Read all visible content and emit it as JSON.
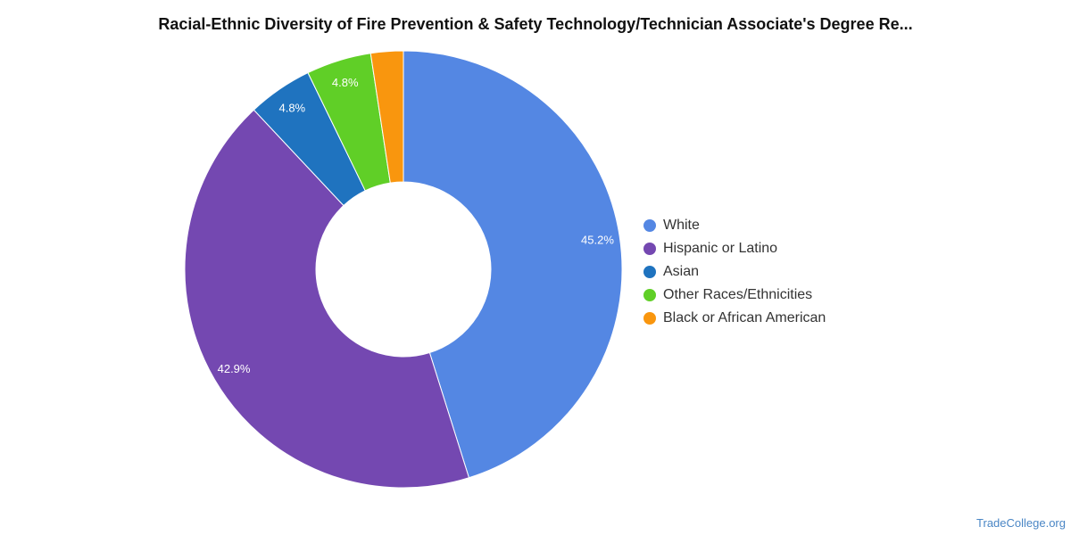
{
  "chart_data": {
    "type": "pie",
    "title": "Racial-Ethnic Diversity of Fire Prevention & Safety Technology/Technician Associate's Degree Re...",
    "donut": true,
    "legend_position": "right",
    "series": [
      {
        "name": "White",
        "value": 45.2,
        "label": "45.2%",
        "color": "#5487e3"
      },
      {
        "name": "Hispanic or Latino",
        "value": 42.9,
        "label": "42.9%",
        "color": "#7448b1"
      },
      {
        "name": "Asian",
        "value": 4.8,
        "label": "4.8%",
        "color": "#1f73bf"
      },
      {
        "name": "Other Races/Ethnicities",
        "value": 4.8,
        "label": "4.8%",
        "color": "#60cf27"
      },
      {
        "name": "Black or African American",
        "value": 2.4,
        "label": "",
        "color": "#f9960e"
      }
    ]
  },
  "footer": {
    "source": "TradeCollege.org"
  }
}
